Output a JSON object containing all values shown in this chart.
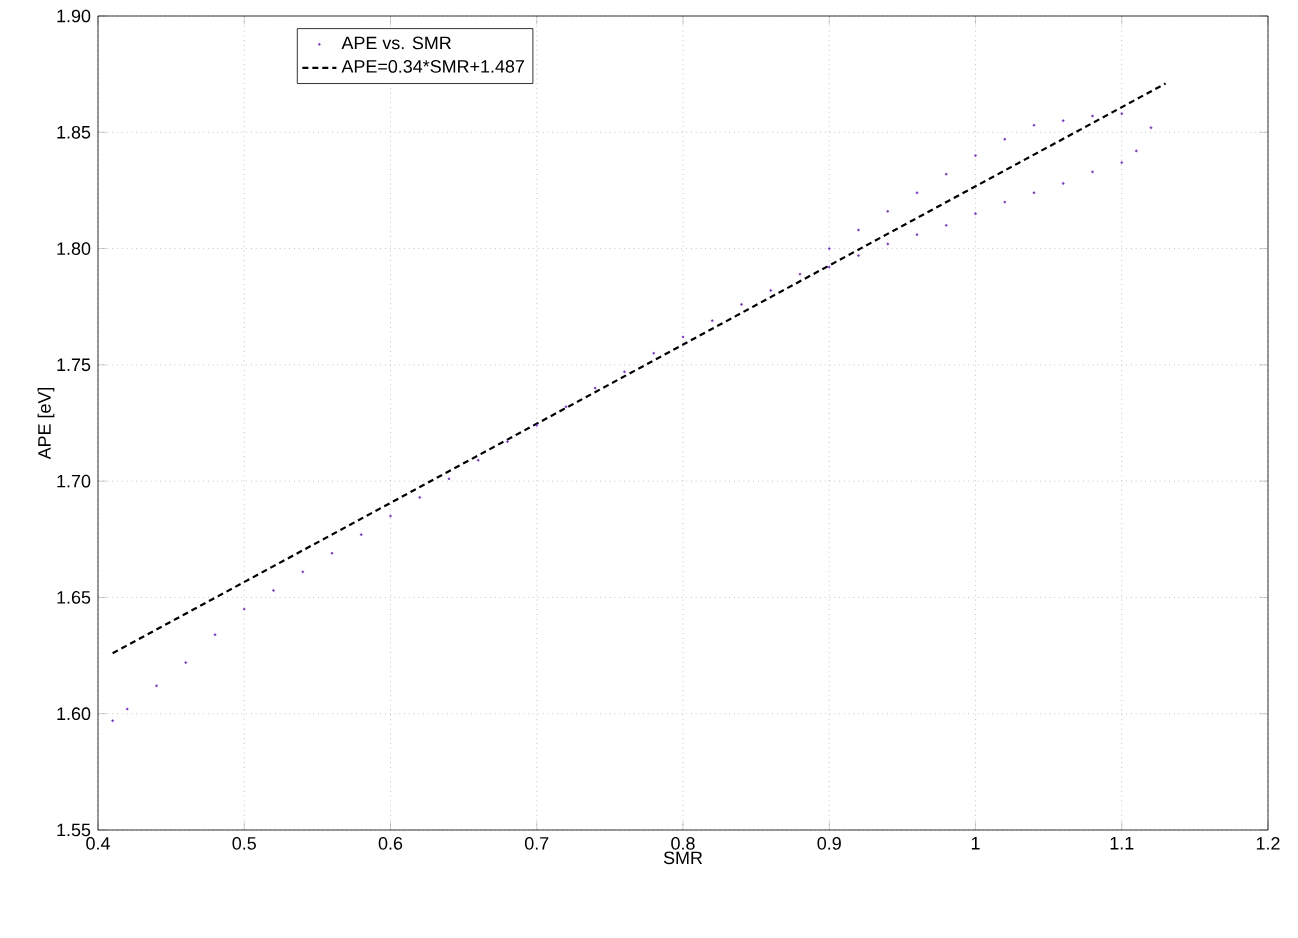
{
  "chart_data": {
    "type": "scatter",
    "xlabel": "SMR",
    "ylabel": "APE [eV]",
    "xlim": [
      0.4,
      1.2
    ],
    "ylim": [
      1.55,
      1.9
    ],
    "xticks": [
      0.4,
      0.5,
      0.6,
      0.7,
      0.8,
      0.9,
      1,
      1.1,
      1.2
    ],
    "yticks": [
      {
        "value": 1.55,
        "label": "1.55"
      },
      {
        "value": 1.6,
        "label": "1.60"
      },
      {
        "value": 1.65,
        "label": "1.65"
      },
      {
        "value": 1.7,
        "label": "1.70"
      },
      {
        "value": 1.75,
        "label": "1.75"
      },
      {
        "value": 1.8,
        "label": "1.80"
      },
      {
        "value": 1.85,
        "label": "1.85"
      },
      {
        "value": 1.9,
        "label": "1.90"
      }
    ],
    "grid": true,
    "legend": "top left",
    "series": [
      {
        "name": "APE vs. SMR",
        "color": "#7f1fff",
        "x": [
          0.41,
          0.42,
          0.44,
          0.46,
          0.48,
          0.5,
          0.52,
          0.54,
          0.56,
          0.58,
          0.6,
          0.62,
          0.64,
          0.66,
          0.68,
          0.7,
          0.72,
          0.74,
          0.76,
          0.78,
          0.8,
          0.82,
          0.84,
          0.86,
          0.88,
          0.9,
          0.9,
          0.92,
          0.92,
          0.94,
          0.94,
          0.96,
          0.96,
          0.98,
          0.98,
          1.0,
          1.0,
          1.02,
          1.02,
          1.04,
          1.04,
          1.06,
          1.06,
          1.08,
          1.08,
          1.1,
          1.1,
          1.11,
          1.12
        ],
        "values": [
          1.597,
          1.602,
          1.612,
          1.622,
          1.634,
          1.645,
          1.653,
          1.661,
          1.669,
          1.677,
          1.685,
          1.693,
          1.701,
          1.709,
          1.717,
          1.724,
          1.732,
          1.74,
          1.747,
          1.755,
          1.762,
          1.769,
          1.776,
          1.782,
          1.789,
          1.792,
          1.8,
          1.797,
          1.808,
          1.802,
          1.816,
          1.806,
          1.824,
          1.81,
          1.832,
          1.815,
          1.84,
          1.82,
          1.847,
          1.824,
          1.853,
          1.828,
          1.855,
          1.833,
          1.857,
          1.837,
          1.858,
          1.842,
          1.852
        ]
      },
      {
        "name": "APE=0.34*SMR+1.487",
        "type": "line",
        "color": "#000000",
        "line_style": "dashed",
        "marker": "none",
        "x": [
          0.41,
          1.13
        ],
        "values": [
          1.626,
          1.871
        ]
      }
    ]
  }
}
